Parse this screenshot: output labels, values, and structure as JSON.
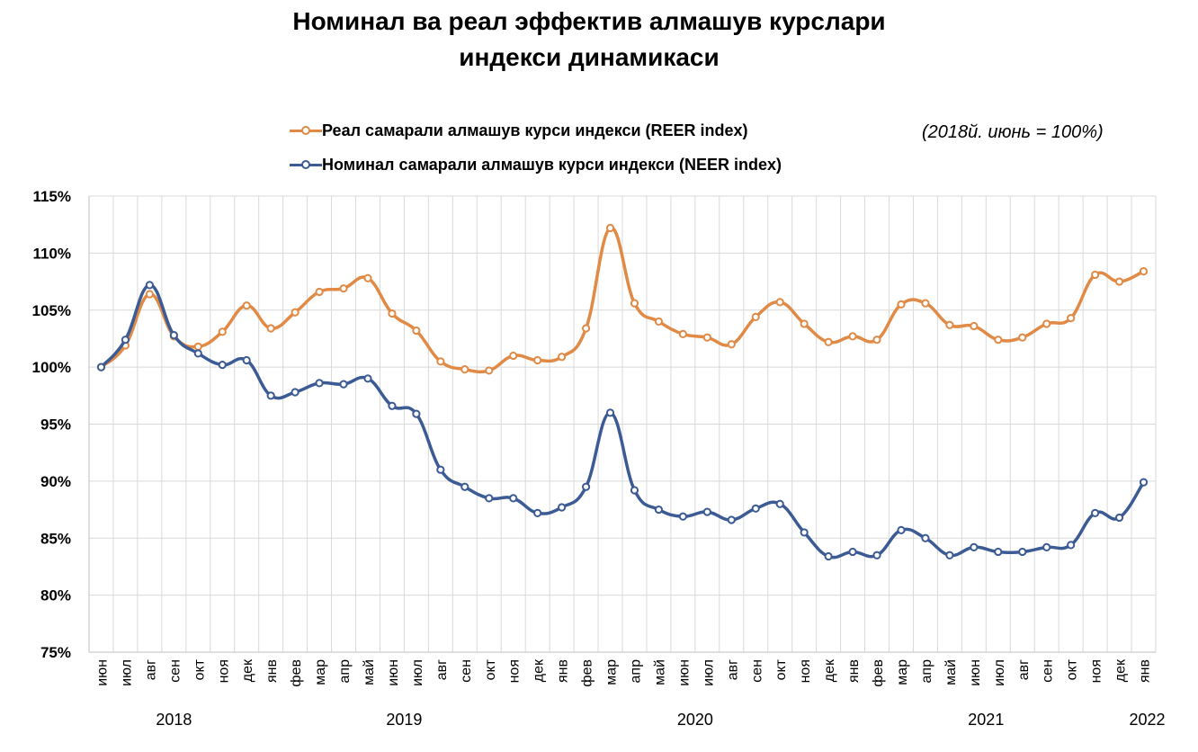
{
  "chart_data": {
    "type": "line",
    "title_line1": "Номинал ва реал эффектив алмашув курслари",
    "title_line2": "индекси динамикаси",
    "note": "(2018й. июнь = 100%)",
    "categories": [
      "июн",
      "июл",
      "авг",
      "сен",
      "окт",
      "ноя",
      "дек",
      "янв",
      "фев",
      "мар",
      "апр",
      "май",
      "июн",
      "июл",
      "авг",
      "сен",
      "окт",
      "ноя",
      "дек",
      "янв",
      "фев",
      "мар",
      "апр",
      "май",
      "июн",
      "июл",
      "авг",
      "сен",
      "окт",
      "ноя",
      "дек",
      "янв",
      "фев",
      "мар",
      "апр",
      "май",
      "июн",
      "июл",
      "авг",
      "сен",
      "окт",
      "ноя",
      "дек",
      "янв"
    ],
    "years": [
      {
        "label": "2018",
        "from": 0,
        "to": 6
      },
      {
        "label": "2019",
        "from": 7,
        "to": 18
      },
      {
        "label": "2020",
        "from": 19,
        "to": 30
      },
      {
        "label": "2021",
        "from": 31,
        "to": 42
      },
      {
        "label": "2022",
        "from": 43,
        "to": 43
      }
    ],
    "ylim": [
      75,
      115
    ],
    "yticks": [
      75,
      80,
      85,
      90,
      95,
      100,
      105,
      110,
      115
    ],
    "ytick_labels": [
      "75%",
      "80%",
      "85%",
      "90%",
      "95%",
      "100%",
      "105%",
      "110%",
      "115%"
    ],
    "grid": true,
    "legend_position": "top-left",
    "series": [
      {
        "name": "Реал самарали алмашув курси индекси (REER index)",
        "color": "#E08A45",
        "values": [
          100.0,
          101.9,
          106.4,
          102.7,
          101.8,
          103.1,
          105.4,
          103.4,
          104.8,
          106.6,
          106.9,
          107.8,
          104.7,
          103.2,
          100.5,
          99.8,
          99.7,
          101.0,
          100.6,
          100.9,
          103.4,
          112.2,
          105.6,
          104.0,
          102.9,
          102.6,
          102.0,
          104.4,
          105.7,
          103.8,
          102.2,
          102.7,
          102.4,
          105.5,
          105.6,
          103.7,
          103.6,
          102.4,
          102.6,
          103.8,
          104.3,
          108.1,
          107.5,
          108.4
        ]
      },
      {
        "name": "Номинал самарали алмашув курси индекси (NEER index)",
        "color": "#3C5B94",
        "values": [
          100.0,
          102.4,
          107.2,
          102.8,
          101.2,
          100.2,
          100.6,
          97.5,
          97.8,
          98.6,
          98.5,
          99.0,
          96.6,
          95.9,
          91.0,
          89.5,
          88.5,
          88.5,
          87.2,
          87.7,
          89.5,
          96.0,
          89.2,
          87.5,
          86.9,
          87.3,
          86.6,
          87.6,
          88.0,
          85.5,
          83.4,
          83.8,
          83.5,
          85.7,
          85.0,
          83.5,
          84.2,
          83.8,
          83.8,
          84.2,
          84.4,
          87.2,
          86.8,
          89.9
        ]
      }
    ]
  }
}
